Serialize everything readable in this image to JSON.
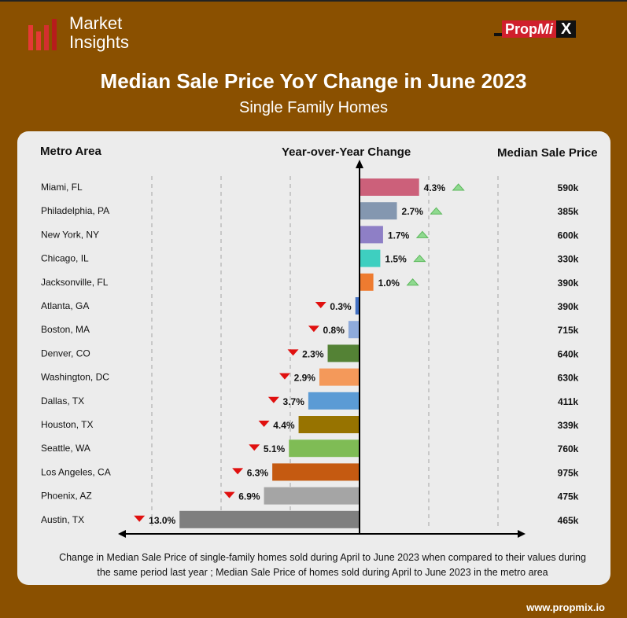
{
  "brand": {
    "logo_line1": "Market",
    "logo_line2": "Insights",
    "partner_a": "Prop",
    "partner_b": "Mi",
    "partner_c": "X",
    "url": "www.propmix.io"
  },
  "header": {
    "title": "Median Sale Price YoY Change in June 2023",
    "subtitle": "Single Family Homes"
  },
  "columns": {
    "metro": "Metro Area",
    "change": "Year-over-Year Change",
    "price": "Median Sale Price"
  },
  "footer": "Change in Median Sale Price of single-family homes sold during April to June 2023 when compared to their values during the same period last year ; Median Sale Price of homes sold during  April to June 2023 in the metro area",
  "chart_data": {
    "type": "bar",
    "title": "Median Sale Price YoY Change in June 2023",
    "xlabel": "Year-over-Year Change",
    "unit": "%",
    "xlim": [
      -17,
      12
    ],
    "categories": [
      "Miami, FL",
      "Philadelphia, PA",
      "New York, NY",
      "Chicago, IL",
      "Jacksonville, FL",
      "Atlanta, GA",
      "Boston, MA",
      "Denver, CO",
      "Washington, DC",
      "Dallas, TX",
      "Houston, TX",
      "Seattle, WA",
      "Los Angeles, CA",
      "Phoenix, AZ",
      "Austin, TX"
    ],
    "values": [
      4.3,
      2.7,
      1.7,
      1.5,
      1.0,
      -0.3,
      -0.8,
      -2.3,
      -2.9,
      -3.7,
      -4.4,
      -5.1,
      -6.3,
      -6.9,
      -13.0
    ],
    "labels": [
      "4.3%",
      "2.7%",
      "1.7%",
      "1.5%",
      "1.0%",
      "0.3%",
      "0.8%",
      "2.3%",
      "2.9%",
      "3.7%",
      "4.4%",
      "5.1%",
      "6.3%",
      "6.9%",
      "13.0%"
    ],
    "prices": [
      "590k",
      "385k",
      "600k",
      "330k",
      "390k",
      "390k",
      "715k",
      "640k",
      "630k",
      "411k",
      "339k",
      "760k",
      "975k",
      "475k",
      "465k"
    ],
    "colors": [
      "#cc607a",
      "#8497b0",
      "#8e7fc6",
      "#3ecfc0",
      "#ee7b30",
      "#4472c4",
      "#8eaadb",
      "#548235",
      "#f4995a",
      "#5b9bd5",
      "#977300",
      "#7fbc55",
      "#c55a11",
      "#a5a5a5",
      "#7f7f7f"
    ],
    "gridlines": [
      -15,
      -10,
      -5,
      5,
      10
    ],
    "up_color": "#8fd98f",
    "down_color": "#e0100f"
  }
}
